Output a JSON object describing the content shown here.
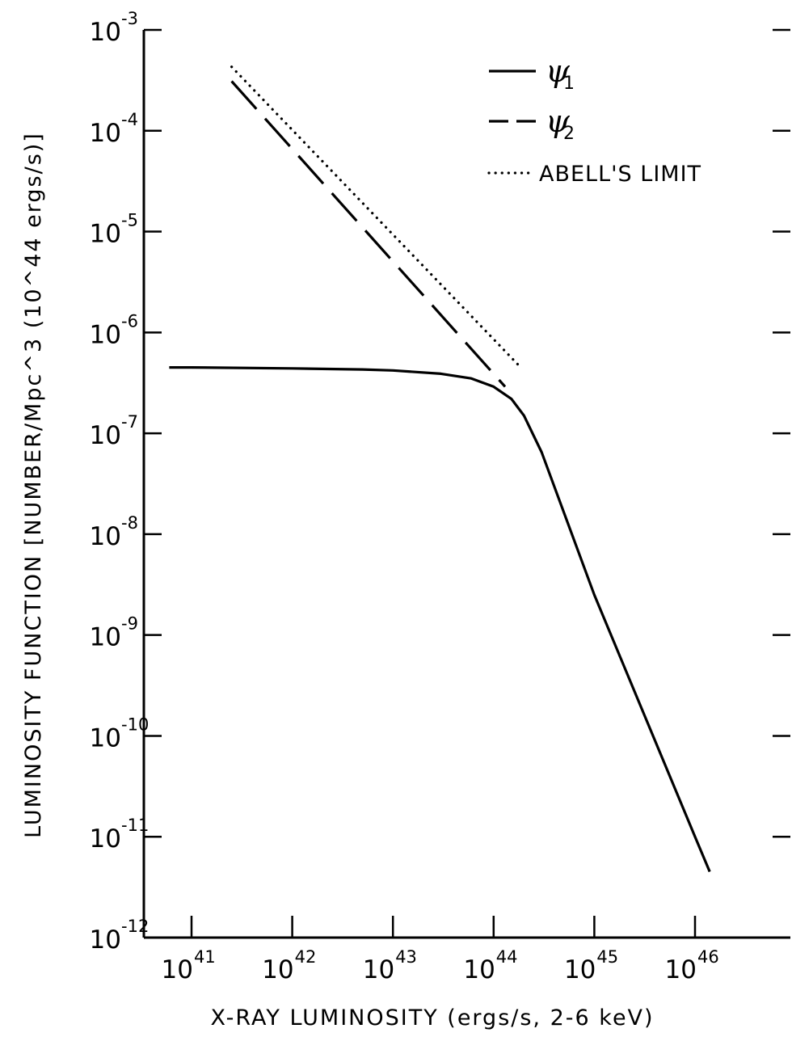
{
  "chart_data": {
    "type": "line",
    "xlabel": "X-RAY LUMINOSITY (ergs/s, 2-6 keV)",
    "ylabel": "LUMINOSITY FUNCTION [NUMBER/Mpc^3 (10^44 ergs/s)]",
    "x_scale": "log",
    "y_scale": "log",
    "xlim": [
      3e+40,
      1e+47
    ],
    "ylim": [
      1e-12,
      0.001
    ],
    "x_ticks": [
      {
        "base": "10",
        "exp": "41",
        "value": 1e+41
      },
      {
        "base": "10",
        "exp": "42",
        "value": 1e+42
      },
      {
        "base": "10",
        "exp": "43",
        "value": 1e+43
      },
      {
        "base": "10",
        "exp": "44",
        "value": 1e+44
      },
      {
        "base": "10",
        "exp": "45",
        "value": 1e+45
      },
      {
        "base": "10",
        "exp": "46",
        "value": 1e+46
      }
    ],
    "y_ticks": [
      {
        "base": "10",
        "exp": "-3",
        "value": 0.001
      },
      {
        "base": "10",
        "exp": "-4",
        "value": 0.0001
      },
      {
        "base": "10",
        "exp": "-5",
        "value": 1e-05
      },
      {
        "base": "10",
        "exp": "-6",
        "value": 1e-06
      },
      {
        "base": "10",
        "exp": "-7",
        "value": 1e-07
      },
      {
        "base": "10",
        "exp": "-8",
        "value": 1e-08
      },
      {
        "base": "10",
        "exp": "-9",
        "value": 1e-09
      },
      {
        "base": "10",
        "exp": "-10",
        "value": 1e-10
      },
      {
        "base": "10",
        "exp": "-11",
        "value": 1e-11
      },
      {
        "base": "10",
        "exp": "-12",
        "value": 1e-12
      }
    ],
    "legend_position": "top-right",
    "legend": [
      {
        "symbol": "ψ",
        "subscript": "1",
        "label": "",
        "style": "solid"
      },
      {
        "symbol": "ψ",
        "subscript": "2",
        "label": "",
        "style": "dashed"
      },
      {
        "symbol": "",
        "subscript": "",
        "label": "ABELL'S LIMIT",
        "style": "dotted"
      }
    ],
    "series": [
      {
        "style": "solid",
        "x": [
          6e+40,
          1e+41,
          1e+42,
          5e+42,
          1e+43,
          3e+43,
          6e+43,
          1e+44,
          1.5e+44,
          2e+44,
          3e+44,
          1e+45,
          1e+46,
          1.4e+46
        ],
        "y": [
          4.5e-07,
          4.5e-07,
          4.4e-07,
          4.3e-07,
          4.2e-07,
          3.9e-07,
          3.5e-07,
          2.9e-07,
          2.2e-07,
          1.5e-07,
          6.5e-08,
          2.5e-09,
          1e-11,
          4.5e-12
        ]
      },
      {
        "style": "dashed",
        "x": [
          2.5e+41,
          1.3e+44
        ],
        "y": [
          0.00031,
          2.9e-07
        ]
      },
      {
        "style": "dotted",
        "x": [
          2.5e+41,
          1.9e+44
        ],
        "y": [
          0.00043,
          4.4e-07
        ]
      }
    ]
  }
}
